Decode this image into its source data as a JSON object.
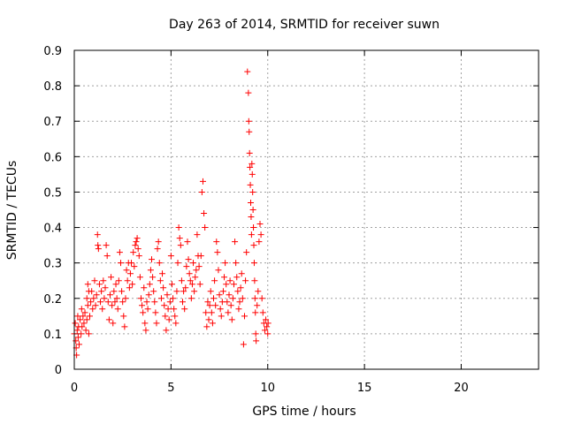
{
  "chart_data": {
    "type": "scatter",
    "title": "Day 263 of 2014, SRMTID for receiver suwn",
    "xlabel": "GPS time / hours",
    "ylabel": "SRMTID / TECUs",
    "xlim": [
      0,
      24
    ],
    "ylim": [
      0,
      0.9
    ],
    "xticks": [
      0,
      5,
      10,
      15,
      20
    ],
    "xtick_labels": [
      "0",
      "5",
      "10",
      "15",
      "20"
    ],
    "yticks": [
      0,
      0.1,
      0.2,
      0.3,
      0.4,
      0.5,
      0.6,
      0.7,
      0.8,
      0.9
    ],
    "ytick_labels": [
      "0",
      "0.1",
      "0.2",
      "0.3",
      "0.4",
      "0.5",
      "0.6",
      "0.7",
      "0.8",
      "0.9"
    ],
    "grid": true,
    "marker": "+",
    "color": "#ff0000",
    "series": [
      {
        "name": "SRMTID",
        "points": [
          [
            0.0,
            0.1
          ],
          [
            0.05,
            0.13
          ],
          [
            0.08,
            0.08
          ],
          [
            0.1,
            0.06
          ],
          [
            0.12,
            0.04
          ],
          [
            0.15,
            0.11
          ],
          [
            0.18,
            0.15
          ],
          [
            0.2,
            0.09
          ],
          [
            0.22,
            0.12
          ],
          [
            0.25,
            0.07
          ],
          [
            0.3,
            0.14
          ],
          [
            0.35,
            0.1
          ],
          [
            0.38,
            0.17
          ],
          [
            0.4,
            0.12
          ],
          [
            0.45,
            0.15
          ],
          [
            0.5,
            0.13
          ],
          [
            0.55,
            0.16
          ],
          [
            0.6,
            0.11
          ],
          [
            0.65,
            0.14
          ],
          [
            0.7,
            0.18
          ],
          [
            0.75,
            0.1
          ],
          [
            0.8,
            0.15
          ],
          [
            0.7,
            0.24
          ],
          [
            0.75,
            0.22
          ],
          [
            0.65,
            0.2
          ],
          [
            0.85,
            0.19
          ],
          [
            0.9,
            0.22
          ],
          [
            0.95,
            0.17
          ],
          [
            1.0,
            0.2
          ],
          [
            1.05,
            0.25
          ],
          [
            1.1,
            0.18
          ],
          [
            1.15,
            0.21
          ],
          [
            1.2,
            0.38
          ],
          [
            1.22,
            0.35
          ],
          [
            1.25,
            0.34
          ],
          [
            1.3,
            0.24
          ],
          [
            1.35,
            0.19
          ],
          [
            1.4,
            0.22
          ],
          [
            1.45,
            0.17
          ],
          [
            1.5,
            0.25
          ],
          [
            1.55,
            0.2
          ],
          [
            1.6,
            0.23
          ],
          [
            1.65,
            0.35
          ],
          [
            1.7,
            0.32
          ],
          [
            1.75,
            0.19
          ],
          [
            1.8,
            0.14
          ],
          [
            1.85,
            0.21
          ],
          [
            1.9,
            0.26
          ],
          [
            1.95,
            0.18
          ],
          [
            2.0,
            0.13
          ],
          [
            2.05,
            0.22
          ],
          [
            2.1,
            0.19
          ],
          [
            2.15,
            0.24
          ],
          [
            2.2,
            0.2
          ],
          [
            2.25,
            0.17
          ],
          [
            2.3,
            0.25
          ],
          [
            2.35,
            0.33
          ],
          [
            2.4,
            0.3
          ],
          [
            2.45,
            0.22
          ],
          [
            2.5,
            0.19
          ],
          [
            2.55,
            0.15
          ],
          [
            2.6,
            0.12
          ],
          [
            2.65,
            0.2
          ],
          [
            2.7,
            0.28
          ],
          [
            2.75,
            0.25
          ],
          [
            2.8,
            0.3
          ],
          [
            2.85,
            0.23
          ],
          [
            2.9,
            0.27
          ],
          [
            2.95,
            0.3
          ],
          [
            3.0,
            0.24
          ],
          [
            3.05,
            0.33
          ],
          [
            3.1,
            0.29
          ],
          [
            3.15,
            0.35
          ],
          [
            3.2,
            0.36
          ],
          [
            3.25,
            0.37
          ],
          [
            3.3,
            0.34
          ],
          [
            3.35,
            0.32
          ],
          [
            3.4,
            0.26
          ],
          [
            3.45,
            0.2
          ],
          [
            3.5,
            0.18
          ],
          [
            3.55,
            0.16
          ],
          [
            3.6,
            0.23
          ],
          [
            3.65,
            0.13
          ],
          [
            3.7,
            0.11
          ],
          [
            3.75,
            0.19
          ],
          [
            3.8,
            0.17
          ],
          [
            3.85,
            0.21
          ],
          [
            3.9,
            0.24
          ],
          [
            3.95,
            0.28
          ],
          [
            4.0,
            0.31
          ],
          [
            4.05,
            0.26
          ],
          [
            4.1,
            0.22
          ],
          [
            4.15,
            0.19
          ],
          [
            4.2,
            0.16
          ],
          [
            4.25,
            0.13
          ],
          [
            4.3,
            0.34
          ],
          [
            4.35,
            0.36
          ],
          [
            4.4,
            0.3
          ],
          [
            4.45,
            0.25
          ],
          [
            4.5,
            0.2
          ],
          [
            4.55,
            0.27
          ],
          [
            4.6,
            0.23
          ],
          [
            4.65,
            0.18
          ],
          [
            4.7,
            0.15
          ],
          [
            4.75,
            0.11
          ],
          [
            4.8,
            0.21
          ],
          [
            4.85,
            0.17
          ],
          [
            4.9,
            0.14
          ],
          [
            4.95,
            0.19
          ],
          [
            5.0,
            0.32
          ],
          [
            5.05,
            0.24
          ],
          [
            5.1,
            0.2
          ],
          [
            5.15,
            0.17
          ],
          [
            5.2,
            0.15
          ],
          [
            5.25,
            0.13
          ],
          [
            5.3,
            0.22
          ],
          [
            5.35,
            0.3
          ],
          [
            5.4,
            0.4
          ],
          [
            5.45,
            0.37
          ],
          [
            5.5,
            0.35
          ],
          [
            5.55,
            0.25
          ],
          [
            5.6,
            0.19
          ],
          [
            5.65,
            0.22
          ],
          [
            5.7,
            0.17
          ],
          [
            5.75,
            0.23
          ],
          [
            5.8,
            0.29
          ],
          [
            5.85,
            0.36
          ],
          [
            5.9,
            0.31
          ],
          [
            5.95,
            0.27
          ],
          [
            6.0,
            0.25
          ],
          [
            6.05,
            0.2
          ],
          [
            6.1,
            0.24
          ],
          [
            6.15,
            0.3
          ],
          [
            6.2,
            0.22
          ],
          [
            6.25,
            0.26
          ],
          [
            6.3,
            0.28
          ],
          [
            6.35,
            0.38
          ],
          [
            6.4,
            0.32
          ],
          [
            6.45,
            0.29
          ],
          [
            6.5,
            0.24
          ],
          [
            6.55,
            0.32
          ],
          [
            6.6,
            0.5
          ],
          [
            6.65,
            0.53
          ],
          [
            6.7,
            0.44
          ],
          [
            6.75,
            0.4
          ],
          [
            6.8,
            0.16
          ],
          [
            6.85,
            0.12
          ],
          [
            6.9,
            0.19
          ],
          [
            6.95,
            0.14
          ],
          [
            7.0,
            0.18
          ],
          [
            7.05,
            0.22
          ],
          [
            7.1,
            0.16
          ],
          [
            7.15,
            0.13
          ],
          [
            7.2,
            0.2
          ],
          [
            7.25,
            0.25
          ],
          [
            7.3,
            0.18
          ],
          [
            7.35,
            0.36
          ],
          [
            7.4,
            0.33
          ],
          [
            7.45,
            0.28
          ],
          [
            7.5,
            0.21
          ],
          [
            7.55,
            0.17
          ],
          [
            7.6,
            0.15
          ],
          [
            7.65,
            0.19
          ],
          [
            7.7,
            0.22
          ],
          [
            7.75,
            0.26
          ],
          [
            7.8,
            0.3
          ],
          [
            7.85,
            0.24
          ],
          [
            7.9,
            0.19
          ],
          [
            7.95,
            0.16
          ],
          [
            8.0,
            0.21
          ],
          [
            8.05,
            0.25
          ],
          [
            8.1,
            0.18
          ],
          [
            8.15,
            0.14
          ],
          [
            8.2,
            0.2
          ],
          [
            8.25,
            0.24
          ],
          [
            8.3,
            0.36
          ],
          [
            8.35,
            0.3
          ],
          [
            8.4,
            0.26
          ],
          [
            8.45,
            0.22
          ],
          [
            8.5,
            0.17
          ],
          [
            8.55,
            0.19
          ],
          [
            8.6,
            0.23
          ],
          [
            8.65,
            0.27
          ],
          [
            8.7,
            0.2
          ],
          [
            8.75,
            0.07
          ],
          [
            8.8,
            0.15
          ],
          [
            8.85,
            0.25
          ],
          [
            8.9,
            0.33
          ],
          [
            8.95,
            0.84
          ],
          [
            9.0,
            0.78
          ],
          [
            9.02,
            0.7
          ],
          [
            9.04,
            0.67
          ],
          [
            9.06,
            0.61
          ],
          [
            9.08,
            0.57
          ],
          [
            9.1,
            0.52
          ],
          [
            9.12,
            0.47
          ],
          [
            9.14,
            0.43
          ],
          [
            9.16,
            0.38
          ],
          [
            9.18,
            0.58
          ],
          [
            9.2,
            0.55
          ],
          [
            9.22,
            0.5
          ],
          [
            9.24,
            0.45
          ],
          [
            9.26,
            0.4
          ],
          [
            9.28,
            0.35
          ],
          [
            9.3,
            0.3
          ],
          [
            9.32,
            0.25
          ],
          [
            9.34,
            0.2
          ],
          [
            9.36,
            0.16
          ],
          [
            9.38,
            0.1
          ],
          [
            9.4,
            0.08
          ],
          [
            9.45,
            0.18
          ],
          [
            9.5,
            0.22
          ],
          [
            9.55,
            0.36
          ],
          [
            9.6,
            0.41
          ],
          [
            9.65,
            0.38
          ],
          [
            9.7,
            0.2
          ],
          [
            9.75,
            0.16
          ],
          [
            9.8,
            0.13
          ],
          [
            9.85,
            0.11
          ],
          [
            9.9,
            0.14
          ],
          [
            9.95,
            0.12
          ],
          [
            10.0,
            0.1
          ],
          [
            10.02,
            0.13
          ]
        ]
      }
    ]
  }
}
